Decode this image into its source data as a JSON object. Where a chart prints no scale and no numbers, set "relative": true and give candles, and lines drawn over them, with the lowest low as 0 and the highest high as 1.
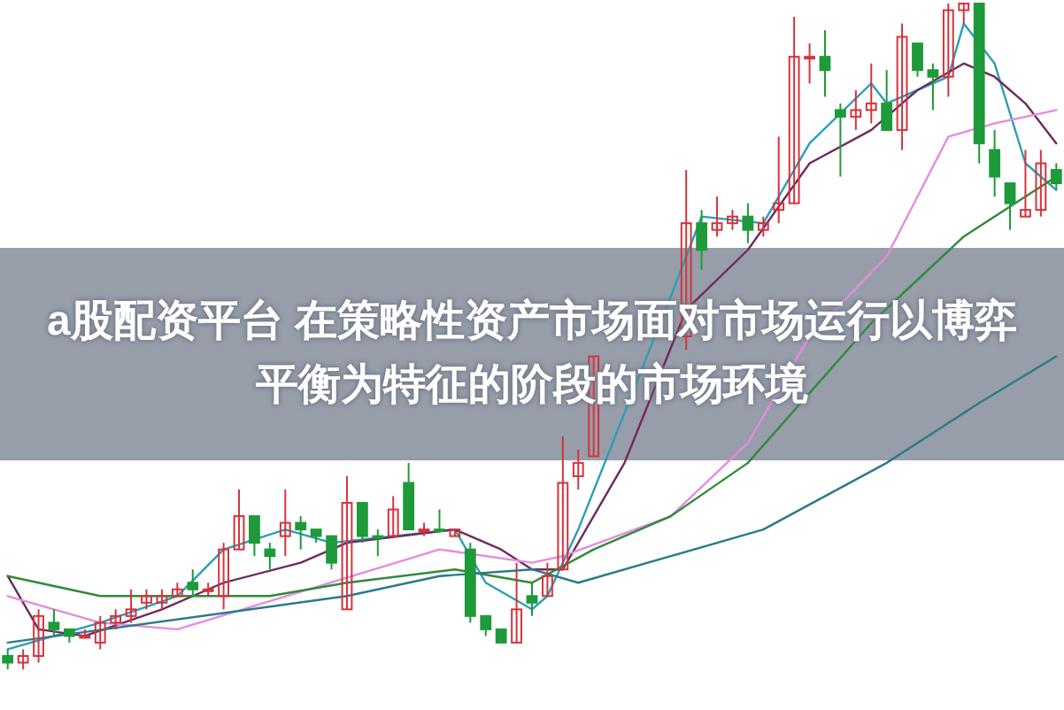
{
  "chart_data": {
    "type": "candlestick",
    "title": "a股配资平台 在策略性资产市场面对市场运行以博弈平衡为特征的阶段的市场环境",
    "relative": true,
    "categories": [
      null,
      null,
      null,
      null,
      null,
      null,
      null,
      null,
      null,
      null,
      null,
      null,
      null,
      null,
      null,
      null,
      null,
      null,
      null,
      null,
      null,
      null,
      null,
      null,
      null,
      null,
      null,
      null,
      null,
      null,
      null,
      null,
      null,
      null,
      null,
      null,
      null,
      null,
      null,
      null,
      null,
      null,
      null,
      null,
      null,
      null,
      null,
      null,
      null,
      null,
      null,
      null,
      null,
      null,
      null,
      null,
      null,
      null,
      null,
      null,
      null,
      null,
      null,
      null,
      null,
      null,
      null,
      null,
      null
    ],
    "ohlc": [
      [
        0.02,
        0.03,
        0.0,
        0.01
      ],
      [
        0.01,
        0.03,
        0.0,
        0.02
      ],
      [
        0.02,
        0.09,
        0.01,
        0.08
      ],
      [
        0.07,
        0.09,
        0.05,
        0.06
      ],
      [
        0.06,
        0.06,
        0.04,
        0.05
      ],
      [
        0.05,
        0.06,
        0.05,
        0.05
      ],
      [
        0.04,
        0.08,
        0.03,
        0.07
      ],
      [
        0.07,
        0.09,
        0.06,
        0.08
      ],
      [
        0.08,
        0.12,
        0.07,
        0.09
      ],
      [
        0.1,
        0.12,
        0.09,
        0.11
      ],
      [
        0.1,
        0.12,
        0.09,
        0.11
      ],
      [
        0.11,
        0.13,
        0.11,
        0.12
      ],
      [
        0.13,
        0.15,
        0.11,
        0.12
      ],
      [
        0.12,
        0.13,
        0.11,
        0.12
      ],
      [
        0.11,
        0.19,
        0.09,
        0.18
      ],
      [
        0.18,
        0.27,
        0.18,
        0.23
      ],
      [
        0.23,
        0.23,
        0.17,
        0.19
      ],
      [
        0.18,
        0.19,
        0.15,
        0.17
      ],
      [
        0.2,
        0.27,
        0.17,
        0.22
      ],
      [
        0.22,
        0.23,
        0.18,
        0.21
      ],
      [
        0.21,
        0.21,
        0.19,
        0.2
      ],
      [
        0.2,
        0.2,
        0.15,
        0.16
      ],
      [
        0.09,
        0.29,
        0.09,
        0.25
      ],
      [
        0.25,
        0.25,
        0.19,
        0.2
      ],
      [
        0.2,
        0.21,
        0.17,
        0.2
      ],
      [
        0.2,
        0.26,
        0.2,
        0.24
      ],
      [
        0.28,
        0.31,
        0.21,
        0.21
      ],
      [
        0.21,
        0.22,
        0.2,
        0.21
      ],
      [
        0.21,
        0.24,
        0.21,
        0.21
      ],
      [
        0.2,
        0.21,
        0.2,
        0.21
      ],
      [
        0.18,
        0.19,
        0.07,
        0.08
      ],
      [
        0.08,
        0.08,
        0.05,
        0.06
      ],
      [
        0.06,
        0.06,
        0.04,
        0.04
      ],
      [
        0.04,
        0.16,
        0.04,
        0.09
      ],
      [
        0.11,
        0.13,
        0.08,
        0.1
      ],
      [
        0.11,
        0.16,
        0.11,
        0.14
      ],
      [
        0.15,
        0.35,
        0.15,
        0.28
      ],
      [
        0.29,
        0.33,
        0.27,
        0.31
      ],
      [
        0.32,
        0.47,
        0.32,
        0.47
      ],
      null,
      null,
      null,
      null,
      null,
      [
        0.5,
        0.75,
        0.48,
        0.67
      ],
      [
        0.67,
        0.69,
        0.6,
        0.63
      ],
      [
        0.66,
        0.71,
        0.65,
        0.67
      ],
      [
        0.67,
        0.69,
        0.66,
        0.68
      ],
      [
        0.68,
        0.7,
        0.64,
        0.66
      ],
      [
        0.66,
        0.68,
        0.65,
        0.67
      ],
      [
        0.69,
        0.8,
        0.67,
        0.7
      ],
      [
        0.7,
        0.98,
        0.7,
        0.92
      ],
      [
        0.92,
        0.94,
        0.88,
        0.92
      ],
      [
        0.92,
        0.96,
        0.86,
        0.9
      ],
      [
        0.84,
        0.85,
        0.74,
        0.83
      ],
      [
        0.83,
        0.87,
        0.81,
        0.84
      ],
      [
        0.84,
        0.91,
        0.82,
        0.85
      ],
      [
        0.85,
        0.9,
        0.81,
        0.81
      ],
      [
        0.81,
        0.97,
        0.78,
        0.95
      ],
      [
        0.94,
        0.94,
        0.89,
        0.9
      ],
      [
        0.9,
        0.91,
        0.84,
        0.89
      ],
      [
        0.89,
        1.0,
        0.86,
        0.99
      ],
      [
        0.99,
        1.0,
        0.97,
        1.0
      ],
      [
        1.0,
        1.0,
        0.76,
        0.79
      ],
      [
        0.78,
        0.81,
        0.71,
        0.74
      ],
      [
        0.73,
        0.73,
        0.66,
        0.7
      ],
      [
        0.68,
        0.78,
        0.68,
        0.69
      ],
      [
        0.69,
        0.78,
        0.68,
        0.76
      ],
      [
        0.75,
        0.76,
        0.72,
        0.73
      ]
    ],
    "colors": [
      "#1e9a3a",
      "#d4343c",
      "#d4343c",
      "#1e9a3a",
      "#1e9a3a",
      "#d4343c",
      "#d4343c",
      "#d4343c",
      "#d4343c",
      "#d4343c",
      "#d4343c",
      "#d4343c",
      "#1e9a3a",
      "#d4343c",
      "#d4343c",
      "#d4343c",
      "#1e9a3a",
      "#1e9a3a",
      "#d4343c",
      "#1e9a3a",
      "#1e9a3a",
      "#1e9a3a",
      "#d4343c",
      "#1e9a3a",
      "#1e9a3a",
      "#d4343c",
      "#1e9a3a",
      "#d4343c",
      "#1e9a3a",
      "#d4343c",
      "#1e9a3a",
      "#1e9a3a",
      "#1e9a3a",
      "#d4343c",
      "#1e9a3a",
      "#d4343c",
      "#d4343c",
      "#d4343c",
      "#d4343c",
      null,
      null,
      null,
      null,
      null,
      "#d4343c",
      "#1e9a3a",
      "#d4343c",
      "#d4343c",
      "#1e9a3a",
      "#d4343c",
      "#d4343c",
      "#d4343c",
      "#d4343c",
      "#1e9a3a",
      "#1e9a3a",
      "#d4343c",
      "#d4343c",
      "#1e9a3a",
      "#d4343c",
      "#1e9a3a",
      "#1e9a3a",
      "#d4343c",
      "#d4343c",
      "#1e9a3a",
      "#1e9a3a",
      "#1e9a3a",
      "#d4343c",
      "#d4343c",
      "#1e9a3a"
    ],
    "series": [
      {
        "type": "line",
        "color": "#2a9fb5",
        "values": [
          0.03,
          null,
          null,
          0.05,
          null,
          null,
          0.07,
          null,
          null,
          null,
          null,
          0.11,
          null,
          null,
          0.18,
          null,
          null,
          null,
          0.21,
          null,
          null,
          0.19,
          null,
          null,
          null,
          null,
          null,
          null,
          null,
          0.21,
          null,
          0.13,
          null,
          null,
          0.09,
          0.11,
          null,
          0.21,
          null,
          null,
          null,
          null,
          null,
          0.56,
          null,
          0.68,
          null,
          null,
          null,
          0.67,
          null,
          null,
          0.79,
          null,
          null,
          null,
          0.88,
          0.85,
          null,
          null,
          null,
          0.89,
          0.97,
          null,
          0.91,
          null,
          0.76,
          0.74,
          0.72
        ]
      },
      {
        "type": "line",
        "color": "#6e2b5e",
        "values": [
          0.14,
          null,
          0.06,
          null,
          null,
          0.05,
          null,
          null,
          null,
          null,
          0.09,
          null,
          null,
          null,
          0.13,
          null,
          null,
          null,
          null,
          0.16,
          null,
          null,
          0.19,
          null,
          null,
          null,
          null,
          null,
          null,
          0.21,
          null,
          null,
          0.18,
          null,
          0.15,
          null,
          0.15,
          null,
          null,
          null,
          0.31,
          null,
          null,
          null,
          0.54,
          null,
          null,
          null,
          0.63,
          null,
          null,
          null,
          0.76,
          null,
          null,
          null,
          0.81,
          null,
          null,
          0.87,
          null,
          null,
          0.91,
          null,
          0.89,
          null,
          0.85,
          null,
          0.79
        ]
      },
      {
        "type": "line",
        "color": "#e58be0",
        "values": [
          0.11,
          null,
          null,
          null,
          null,
          null,
          0.07,
          null,
          null,
          null,
          null,
          0.06,
          null,
          null,
          null,
          null,
          null,
          null,
          null,
          null,
          null,
          null,
          null,
          null,
          null,
          null,
          null,
          null,
          0.18,
          null,
          null,
          null,
          null,
          null,
          0.16,
          null,
          0.17,
          null,
          null,
          null,
          null,
          null,
          null,
          0.23,
          null,
          null,
          null,
          null,
          0.34,
          null,
          null,
          null,
          0.5,
          null,
          null,
          null,
          null,
          0.62,
          null,
          null,
          null,
          0.8,
          null,
          null,
          0.82,
          null,
          null,
          null,
          0.84
        ]
      },
      {
        "type": "line",
        "color": "#2f8a3a",
        "values": [
          0.14,
          null,
          null,
          null,
          null,
          null,
          0.11,
          null,
          null,
          null,
          null,
          0.11,
          null,
          null,
          null,
          null,
          null,
          0.11,
          null,
          null,
          null,
          null,
          0.13,
          null,
          null,
          null,
          null,
          null,
          null,
          0.15,
          null,
          null,
          null,
          null,
          0.13,
          null,
          null,
          null,
          0.18,
          null,
          null,
          null,
          null,
          0.23,
          null,
          null,
          null,
          null,
          0.31,
          null,
          null,
          null,
          null,
          null,
          null,
          null,
          0.52,
          null,
          null,
          null,
          null,
          null,
          0.65,
          null,
          null,
          null,
          null,
          null,
          0.74
        ]
      },
      {
        "type": "line",
        "color": "#2b7a8a",
        "values": [
          0.04,
          null,
          null,
          null,
          null,
          null,
          null,
          null,
          null,
          null,
          null,
          null,
          null,
          null,
          null,
          null,
          null,
          null,
          null,
          null,
          null,
          null,
          0.11,
          null,
          null,
          null,
          null,
          null,
          0.14,
          null,
          null,
          null,
          null,
          null,
          0.15,
          null,
          null,
          0.13,
          null,
          null,
          null,
          null,
          null,
          0.17,
          null,
          null,
          null,
          null,
          null,
          0.21,
          null,
          null,
          null,
          null,
          null,
          null,
          null,
          0.31,
          null,
          null,
          null,
          null,
          null,
          0.4,
          null,
          null,
          null,
          null,
          0.47
        ]
      }
    ]
  }
}
